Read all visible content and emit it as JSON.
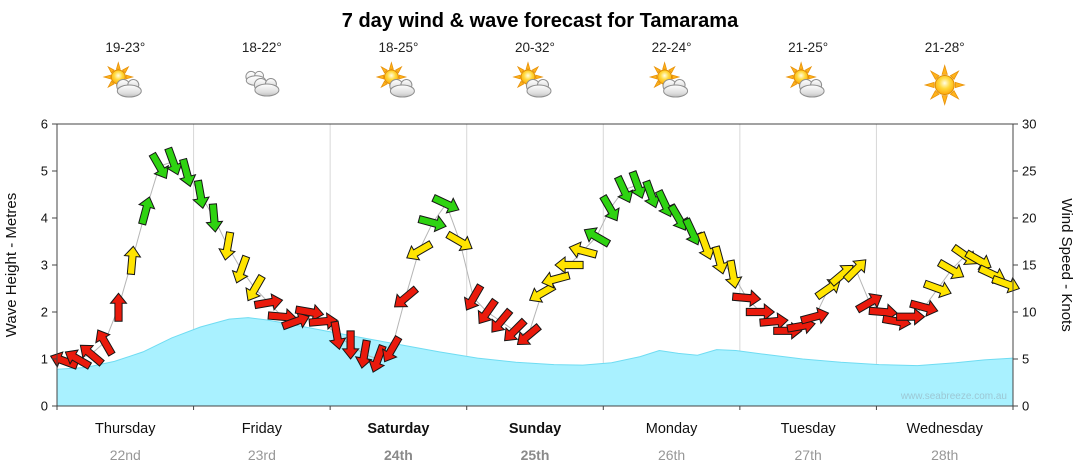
{
  "title": "7 day wind & wave forecast for Tamarama",
  "watermark": "www.seabreeze.com.au",
  "axes": {
    "left_label": "Wave Height - Metres",
    "right_label": "Wind Speed - Knots",
    "wave_ticks": [
      0,
      1,
      2,
      3,
      4,
      5,
      6
    ],
    "wind_ticks": [
      0,
      5,
      10,
      15,
      20,
      25,
      30
    ]
  },
  "days": [
    {
      "name": "Thursday",
      "date": "22nd",
      "temp": "19-23°",
      "icon": "sun-cloud",
      "weekend": false
    },
    {
      "name": "Friday",
      "date": "23rd",
      "temp": "18-22°",
      "icon": "cloudy",
      "weekend": false
    },
    {
      "name": "Saturday",
      "date": "24th",
      "temp": "18-25°",
      "icon": "sun-cloud",
      "weekend": true
    },
    {
      "name": "Sunday",
      "date": "25th",
      "temp": "20-32°",
      "icon": "sun-cloud",
      "weekend": true
    },
    {
      "name": "Monday",
      "date": "26th",
      "temp": "22-24°",
      "icon": "sun-cloud",
      "weekend": false
    },
    {
      "name": "Tuesday",
      "date": "27th",
      "temp": "21-25°",
      "icon": "sun-cloud",
      "weekend": false
    },
    {
      "name": "Wednesday",
      "date": "28th",
      "temp": "21-28°",
      "icon": "sunny",
      "weekend": false
    }
  ],
  "colors": {
    "wave_fill": "#a9f1ff",
    "wave_edge": "#6fdcf2",
    "arrow_red": "#ea1a0c",
    "arrow_yellow": "#ffe400",
    "arrow_green": "#2ed311",
    "wind_line": "#b5b5b5",
    "border": "#444444",
    "separator": "#d8d8d8"
  },
  "chart_data": {
    "type": "line",
    "title": "7 day wind & wave forecast for Tamarama",
    "x_axis": "7 days (Thursday 22nd to Wednesday 28th), 10 samples per day, left to right",
    "wave_ylim": [
      0,
      6
    ],
    "wind_ylim": [
      0,
      30
    ],
    "speed_color_thresholds": {
      "green_min": 18,
      "yellow_min": 12
    },
    "wave_height_metres_keypoints": [
      [
        0.0,
        0.78
      ],
      [
        0.03,
        0.82
      ],
      [
        0.06,
        0.95
      ],
      [
        0.09,
        1.15
      ],
      [
        0.12,
        1.45
      ],
      [
        0.15,
        1.68
      ],
      [
        0.18,
        1.85
      ],
      [
        0.2,
        1.88
      ],
      [
        0.22,
        1.83
      ],
      [
        0.25,
        1.72
      ],
      [
        0.28,
        1.6
      ],
      [
        0.32,
        1.45
      ],
      [
        0.36,
        1.3
      ],
      [
        0.4,
        1.15
      ],
      [
        0.44,
        1.02
      ],
      [
        0.48,
        0.93
      ],
      [
        0.52,
        0.88
      ],
      [
        0.55,
        0.87
      ],
      [
        0.58,
        0.92
      ],
      [
        0.61,
        1.05
      ],
      [
        0.63,
        1.18
      ],
      [
        0.65,
        1.12
      ],
      [
        0.67,
        1.08
      ],
      [
        0.69,
        1.2
      ],
      [
        0.71,
        1.18
      ],
      [
        0.74,
        1.1
      ],
      [
        0.78,
        1.0
      ],
      [
        0.82,
        0.93
      ],
      [
        0.86,
        0.88
      ],
      [
        0.9,
        0.86
      ],
      [
        0.94,
        0.92
      ],
      [
        0.97,
        0.98
      ],
      [
        1.0,
        1.02
      ]
    ],
    "wind_speed_knots": [
      4.8,
      5,
      5.5,
      6.8,
      10.5,
      15.5,
      20.8,
      25.5,
      26,
      24.8,
      22.5,
      20,
      17,
      14.5,
      12.5,
      11,
      9.5,
      9,
      10,
      9,
      7.5,
      6.5,
      5.5,
      5,
      6,
      11.5,
      16.5,
      19.5,
      21.5,
      17.5,
      11.5,
      10,
      9,
      8,
      7.5,
      12,
      13.5,
      15,
      16.5,
      18,
      21,
      23,
      23.5,
      22.5,
      21.5,
      20,
      18.5,
      17,
      15.5,
      14,
      11.5,
      10,
      9,
      8,
      8.5,
      9.5,
      12.5,
      14,
      14.5,
      11,
      10,
      9,
      9.5,
      10.5,
      12.5,
      14.5,
      16,
      15.5,
      14,
      13
    ],
    "wind_direction_deg": [
      290,
      300,
      310,
      330,
      0,
      5,
      15,
      150,
      160,
      165,
      170,
      175,
      190,
      200,
      210,
      80,
      95,
      70,
      100,
      85,
      170,
      180,
      190,
      200,
      210,
      230,
      240,
      105,
      115,
      120,
      210,
      215,
      220,
      225,
      230,
      240,
      255,
      270,
      285,
      300,
      150,
      155,
      160,
      160,
      155,
      150,
      155,
      160,
      165,
      170,
      95,
      90,
      85,
      90,
      80,
      75,
      55,
      50,
      45,
      60,
      95,
      100,
      90,
      105,
      110,
      120,
      125,
      120,
      115,
      110
    ]
  }
}
